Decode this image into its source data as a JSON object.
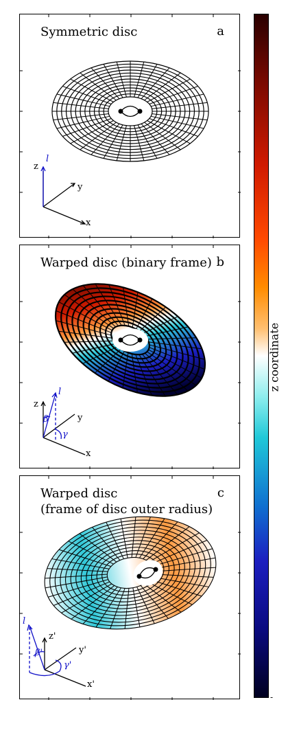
{
  "panels": [
    {
      "title": "Symmetric disc",
      "letter": "a",
      "axes": {
        "z": "z",
        "y": "y",
        "x": "x",
        "l": "l"
      }
    },
    {
      "title": "Warped disc (binary frame)",
      "letter": "b",
      "axes": {
        "z": "z",
        "y": "y",
        "x": "x",
        "l": "l",
        "beta": "β",
        "gamma": "γ"
      }
    },
    {
      "title_line1": "Warped disc",
      "title_line2": "(frame of disc outer radius)",
      "letter": "c",
      "axes": {
        "z": "z'",
        "y": "y'",
        "x": "x'",
        "l": "l",
        "beta": "β'",
        "gamma": "γ'"
      }
    }
  ],
  "colorbar": {
    "label": "z coordinate",
    "tick": "-"
  },
  "colors": {
    "axis_blue": "#1010c8",
    "frame": "#000000"
  }
}
